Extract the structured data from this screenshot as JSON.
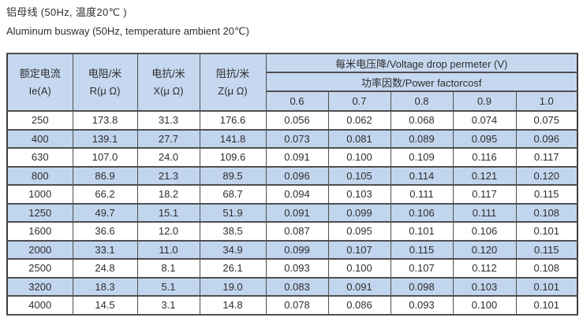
{
  "page": {
    "title_zh": "铝母线 (50Hz, 温度20℃ )",
    "title_en": "Aluminum busway (50Hz, temperature ambient 20℃)"
  },
  "table": {
    "left_headers": [
      {
        "zh": "额定电流",
        "en": "Ie(A)"
      },
      {
        "zh": "电阻/米",
        "en": "R(μ Ω)"
      },
      {
        "zh": "电抗/米",
        "en": "X(μ Ω)"
      },
      {
        "zh": "阻抗/米",
        "en": "Z(μ Ω)"
      }
    ],
    "voltage_drop_header": "每米电压降/Voltage drop permeter (V)",
    "power_factor_header": "功率因数/Power factorcosf",
    "power_factor_values": [
      "0.6",
      "0.7",
      "0.8",
      "0.9",
      "1.0"
    ],
    "rows": [
      {
        "cells": [
          "250",
          "173.8",
          "31.3",
          "176.6",
          "0.056",
          "0.062",
          "0.068",
          "0.074",
          "0.075"
        ]
      },
      {
        "cells": [
          "400",
          "139.1",
          "27.7",
          "141.8",
          "0.073",
          "0.081",
          "0.089",
          "0.095",
          "0.096"
        ]
      },
      {
        "cells": [
          "630",
          "107.0",
          "24.0",
          "109.6",
          "0.091",
          "0.100",
          "0.109",
          "0.116",
          "0.117"
        ]
      },
      {
        "cells": [
          "800",
          "86.9",
          "21.3",
          "89.5",
          "0.096",
          "0.105",
          "0.114",
          "0.121",
          "0.120"
        ]
      },
      {
        "cells": [
          "1000",
          "66.2",
          "18.2",
          "68.7",
          "0.094",
          "0.103",
          "0.111",
          "0.117",
          "0.115"
        ]
      },
      {
        "cells": [
          "1250",
          "49.7",
          "15.1",
          "51.9",
          "0.091",
          "0.099",
          "0.106",
          "0.111",
          "0.108"
        ]
      },
      {
        "cells": [
          "1600",
          "36.6",
          "12.0",
          "38.5",
          "0.087",
          "0.095",
          "0.101",
          "0.106",
          "0.101"
        ]
      },
      {
        "cells": [
          "2000",
          "33.1",
          "11.0",
          "34.9",
          "0.099",
          "0.107",
          "0.115",
          "0.120",
          "0.115"
        ]
      },
      {
        "cells": [
          "2500",
          "24.8",
          "8.1",
          "26.1",
          "0.093",
          "0.100",
          "0.107",
          "0.112",
          "0.108"
        ]
      },
      {
        "cells": [
          "3200",
          "18.3",
          "5.1",
          "19.0",
          "0.083",
          "0.091",
          "0.098",
          "0.103",
          "0.101"
        ]
      },
      {
        "cells": [
          "4000",
          "14.5",
          "3.1",
          "14.8",
          "0.078",
          "0.086",
          "0.093",
          "0.100",
          "0.101"
        ]
      }
    ]
  },
  "colors": {
    "header_bg": "#c6d8f0",
    "stripe_bg": "#c2d5ee",
    "border_dark": "#3d3d3d",
    "border_inner": "#4f4f4f",
    "text": "#2e2e2e"
  },
  "chart_data": {
    "type": "table",
    "title": "铝母线 Aluminum busway (50Hz, temperature ambient 20℃)",
    "columns": [
      "额定电流 Ie(A)",
      "电阻/米 R(μΩ)",
      "电抗/米 X(μΩ)",
      "阻抗/米 Z(μΩ)",
      "每米电压降 Voltage drop per meter (V) cosf=0.6",
      "cosf=0.7",
      "cosf=0.8",
      "cosf=0.9",
      "cosf=1.0"
    ],
    "rows": [
      [
        250,
        173.8,
        31.3,
        176.6,
        0.056,
        0.062,
        0.068,
        0.074,
        0.075
      ],
      [
        400,
        139.1,
        27.7,
        141.8,
        0.073,
        0.081,
        0.089,
        0.095,
        0.096
      ],
      [
        630,
        107.0,
        24.0,
        109.6,
        0.091,
        0.1,
        0.109,
        0.116,
        0.117
      ],
      [
        800,
        86.9,
        21.3,
        89.5,
        0.096,
        0.105,
        0.114,
        0.121,
        0.12
      ],
      [
        1000,
        66.2,
        18.2,
        68.7,
        0.094,
        0.103,
        0.111,
        0.117,
        0.115
      ],
      [
        1250,
        49.7,
        15.1,
        51.9,
        0.091,
        0.099,
        0.106,
        0.111,
        0.108
      ],
      [
        1600,
        36.6,
        12.0,
        38.5,
        0.087,
        0.095,
        0.101,
        0.106,
        0.101
      ],
      [
        2000,
        33.1,
        11.0,
        34.9,
        0.099,
        0.107,
        0.115,
        0.12,
        0.115
      ],
      [
        2500,
        24.8,
        8.1,
        26.1,
        0.093,
        0.1,
        0.107,
        0.112,
        0.108
      ],
      [
        3200,
        18.3,
        5.1,
        19.0,
        0.083,
        0.091,
        0.098,
        0.103,
        0.101
      ],
      [
        4000,
        14.5,
        3.1,
        14.8,
        0.078,
        0.086,
        0.093,
        0.1,
        0.101
      ]
    ]
  }
}
